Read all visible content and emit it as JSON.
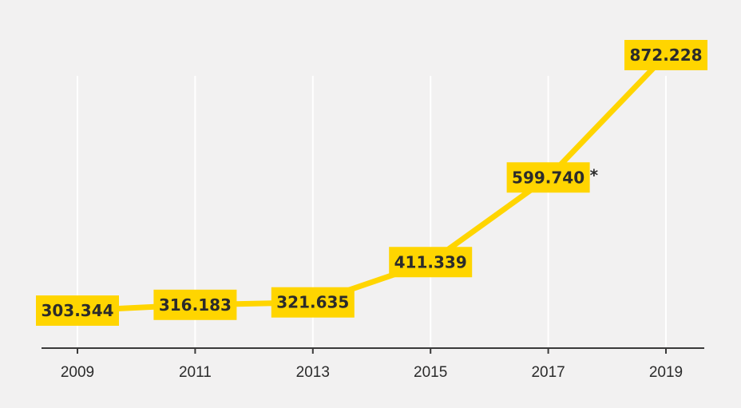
{
  "chart_data": {
    "type": "line",
    "title": "",
    "xlabel": "",
    "ylabel": "",
    "x": [
      "2009",
      "2011",
      "2013",
      "2015",
      "2017",
      "2019"
    ],
    "series": [
      {
        "values": [
          303344,
          316183,
          321635,
          411339,
          599740,
          872228
        ],
        "labels": [
          "303.344",
          "316.183",
          "321.635",
          "411.339",
          "599.740",
          "872.228"
        ]
      }
    ],
    "annotations": [
      {
        "x": "2017",
        "text": "*"
      }
    ],
    "grid": "vertical",
    "legend": "none",
    "colors": {
      "line": "#ffd500",
      "label_background": "#ffd500",
      "text": "#2b2b2b",
      "grid": "#ffffff",
      "axis": "#3a3a3a",
      "background": "#f2f1f1"
    }
  }
}
